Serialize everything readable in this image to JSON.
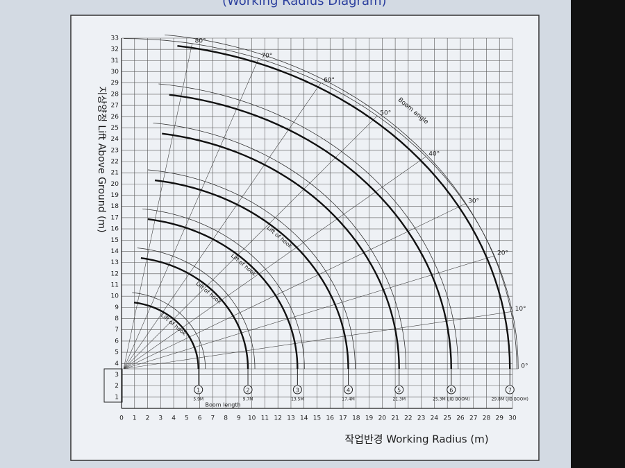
{
  "chart_data": {
    "type": "radius",
    "title": "(Working Radius Diagram)",
    "x_label": "작업반경 Working Radius (m)",
    "y_label": "지상양정 Lift Above Ground (m)",
    "xlim": [
      0,
      30
    ],
    "ylim": [
      0,
      33
    ],
    "xticks": [
      0,
      1,
      2,
      3,
      4,
      5,
      6,
      7,
      8,
      9,
      10,
      11,
      12,
      13,
      14,
      15,
      16,
      17,
      18,
      19,
      20,
      21,
      22,
      23,
      24,
      25,
      26,
      27,
      28,
      29,
      30
    ],
    "yticks": [
      1,
      2,
      3,
      4,
      5,
      6,
      7,
      8,
      9,
      10,
      11,
      12,
      13,
      14,
      15,
      16,
      17,
      18,
      19,
      20,
      21,
      22,
      23,
      24,
      25,
      26,
      27,
      28,
      29,
      30,
      31,
      32,
      33
    ],
    "grid": true,
    "curve_color": "#111111",
    "boom_length_label": "Boom length",
    "boom_angle_label": "Boom angle",
    "hook_label": "Lift of hook",
    "angles": [
      {
        "value": 0,
        "label": "0°"
      },
      {
        "value": 10,
        "label": "10°"
      },
      {
        "value": 20,
        "label": "20°"
      },
      {
        "value": 30,
        "label": "30°"
      },
      {
        "value": 40,
        "label": "40°"
      },
      {
        "value": 50,
        "label": "50°"
      },
      {
        "value": 60,
        "label": "60°"
      },
      {
        "value": 70,
        "label": "70°"
      },
      {
        "value": 80,
        "label": "80°"
      }
    ],
    "booms": [
      {
        "number": "1",
        "length_label": "5.9M",
        "radius": 5.9,
        "height": 9.0
      },
      {
        "number": "2",
        "length_label": "9.7M",
        "radius": 9.7,
        "height": 13.0
      },
      {
        "number": "3",
        "length_label": "13.5M",
        "radius": 13.5,
        "height": 16.5
      },
      {
        "number": "4",
        "length_label": "17.4M",
        "radius": 17.4,
        "height": 20.0
      },
      {
        "number": "5",
        "length_label": "21.3M",
        "radius": 21.3,
        "height": 24.2
      },
      {
        "number": "6",
        "length_label": "25.3M (JIB BOOM)",
        "radius": 25.3,
        "height": 27.7
      },
      {
        "number": "7",
        "length_label": "29.8M (JIB BOOM)",
        "radius": 29.8,
        "height": 32.1
      }
    ]
  }
}
